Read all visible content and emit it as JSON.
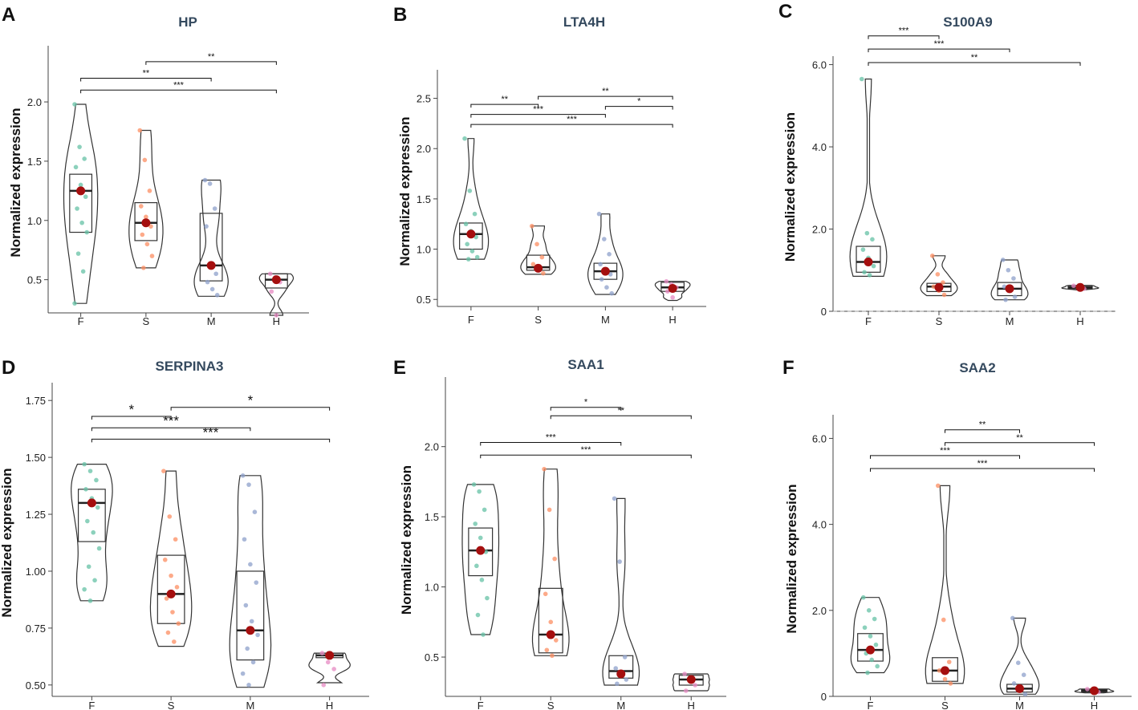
{
  "chart_data": [
    {
      "type": "violin-box",
      "panel": "A",
      "title": "HP",
      "ylabel": "Normalized expression",
      "categories": [
        "F",
        "S",
        "M",
        "H"
      ],
      "yticks": [
        0.5,
        1.0,
        1.5,
        2.0
      ],
      "ytick_labels": [
        "0.5",
        "1.0",
        "1.5",
        "2.0"
      ],
      "ylim": [
        0.22,
        2.42
      ],
      "box": [
        {
          "q1": 0.9,
          "median": 1.25,
          "q3": 1.39,
          "min": 0.3,
          "max": 1.98,
          "mean": 1.25
        },
        {
          "q1": 0.83,
          "median": 0.98,
          "q3": 1.15,
          "min": 0.6,
          "max": 1.76,
          "mean": 0.98
        },
        {
          "q1": 0.49,
          "median": 0.62,
          "q3": 1.06,
          "min": 0.36,
          "max": 1.34,
          "mean": 0.62
        },
        {
          "q1": 0.43,
          "median": 0.5,
          "q3": 0.55,
          "min": 0.2,
          "max": 0.55,
          "mean": 0.5
        }
      ],
      "points": [
        [
          1.98,
          1.62,
          1.52,
          1.45,
          1.3,
          1.2,
          1.1,
          0.98,
          0.9,
          0.72,
          0.57,
          0.3
        ],
        [
          1.76,
          1.51,
          1.25,
          1.12,
          1.03,
          0.95,
          0.88,
          0.8,
          0.7,
          0.6
        ],
        [
          1.34,
          1.31,
          1.1,
          0.95,
          0.62,
          0.55,
          0.48,
          0.42,
          0.37
        ],
        [
          0.55,
          0.52,
          0.48,
          0.4,
          0.2
        ]
      ],
      "comparisons": [
        {
          "from": "S",
          "to": "H",
          "label": "**",
          "y": 2.34
        },
        {
          "from": "F",
          "to": "M",
          "label": "**",
          "y": 2.2
        },
        {
          "from": "F",
          "to": "H",
          "label": "***",
          "y": 2.1
        }
      ]
    },
    {
      "type": "violin-box",
      "panel": "B",
      "title": "LTA4H",
      "ylabel": "Normalized expression",
      "categories": [
        "F",
        "S",
        "M",
        "H"
      ],
      "yticks": [
        0.5,
        1.0,
        1.5,
        2.0,
        2.5
      ],
      "ytick_labels": [
        "0.5",
        "1.0",
        "1.5",
        "2.0",
        "2.5"
      ],
      "ylim": [
        0.43,
        2.72
      ],
      "box": [
        {
          "q1": 1.0,
          "median": 1.15,
          "q3": 1.26,
          "min": 0.9,
          "max": 2.1,
          "mean": 1.15
        },
        {
          "q1": 0.79,
          "median": 0.82,
          "q3": 0.94,
          "min": 0.75,
          "max": 1.23,
          "mean": 0.81
        },
        {
          "q1": 0.7,
          "median": 0.78,
          "q3": 0.86,
          "min": 0.55,
          "max": 1.35,
          "mean": 0.78
        },
        {
          "q1": 0.58,
          "median": 0.62,
          "q3": 0.67,
          "min": 0.49,
          "max": 0.68,
          "mean": 0.61
        }
      ],
      "points": [
        [
          2.1,
          1.58,
          1.35,
          1.25,
          1.18,
          1.12,
          1.05,
          0.98,
          0.92,
          0.9
        ],
        [
          1.23,
          1.05,
          0.92,
          0.85,
          0.8,
          0.76
        ],
        [
          1.35,
          1.1,
          0.95,
          0.85,
          0.8,
          0.75,
          0.7,
          0.62,
          0.56
        ],
        [
          0.68,
          0.65,
          0.62,
          0.58,
          0.52
        ]
      ],
      "comparisons": [
        {
          "from": "S",
          "to": "H",
          "label": "**",
          "y": 2.52
        },
        {
          "from": "M",
          "to": "H",
          "label": "*",
          "y": 2.42
        },
        {
          "from": "F",
          "to": "S",
          "label": "**",
          "y": 2.44
        },
        {
          "from": "F",
          "to": "M",
          "label": "***",
          "y": 2.34
        },
        {
          "from": "F",
          "to": "H",
          "label": "***",
          "y": 2.24
        }
      ]
    },
    {
      "type": "violin-box",
      "panel": "C",
      "title": "S100A9",
      "ylabel": "Normalized expression",
      "categories": [
        "F",
        "S",
        "M",
        "H"
      ],
      "yticks": [
        0,
        2.0,
        4.0,
        6.0
      ],
      "ytick_labels": [
        "0",
        "2.0",
        "4.0",
        "6.0"
      ],
      "ylim": [
        0,
        6.05
      ],
      "zero_line": true,
      "box": [
        {
          "q1": 0.95,
          "median": 1.2,
          "q3": 1.58,
          "min": 0.85,
          "max": 5.65,
          "mean": 1.2
        },
        {
          "q1": 0.48,
          "median": 0.6,
          "q3": 0.68,
          "min": 0.38,
          "max": 1.35,
          "mean": 0.58
        },
        {
          "q1": 0.38,
          "median": 0.55,
          "q3": 0.7,
          "min": 0.28,
          "max": 1.25,
          "mean": 0.55
        },
        {
          "q1": 0.55,
          "median": 0.58,
          "q3": 0.62,
          "min": 0.52,
          "max": 0.63,
          "mean": 0.58
        }
      ],
      "points": [
        [
          5.65,
          1.9,
          1.75,
          1.5,
          1.3,
          1.1,
          0.95,
          0.88
        ],
        [
          1.35,
          0.9,
          0.7,
          0.6,
          0.5,
          0.4
        ],
        [
          1.25,
          1.0,
          0.8,
          0.6,
          0.5,
          0.35,
          0.28
        ],
        [
          0.62,
          0.58,
          0.55
        ]
      ],
      "comparisons": [
        {
          "from": "F",
          "to": "S",
          "label": "***",
          "y": 6.7
        },
        {
          "from": "F",
          "to": "M",
          "label": "***",
          "y": 6.38
        },
        {
          "from": "F",
          "to": "H",
          "label": "**",
          "y": 6.05
        }
      ]
    },
    {
      "type": "violin-box",
      "panel": "D",
      "title": "SERPINA3",
      "ylabel": "Normalized expression",
      "categories": [
        "F",
        "S",
        "M",
        "H"
      ],
      "yticks": [
        0.5,
        0.75,
        1.0,
        1.25,
        1.5,
        1.75
      ],
      "ytick_labels": [
        "0.50",
        "0.75",
        "1.00",
        "1.25",
        "1.50",
        "1.75"
      ],
      "ylim": [
        0.45,
        1.8
      ],
      "box": [
        {
          "q1": 1.13,
          "median": 1.3,
          "q3": 1.36,
          "min": 0.87,
          "max": 1.47,
          "mean": 1.3
        },
        {
          "q1": 0.77,
          "median": 0.9,
          "q3": 1.07,
          "min": 0.67,
          "max": 1.44,
          "mean": 0.9
        },
        {
          "q1": 0.61,
          "median": 0.74,
          "q3": 1.0,
          "min": 0.49,
          "max": 1.42,
          "mean": 0.74
        },
        {
          "q1": 0.62,
          "median": 0.63,
          "q3": 0.64,
          "min": 0.51,
          "max": 0.64,
          "mean": 0.63
        }
      ],
      "points": [
        [
          1.47,
          1.44,
          1.4,
          1.36,
          1.32,
          1.28,
          1.22,
          1.17,
          1.1,
          1.02,
          0.96,
          0.92,
          0.87
        ],
        [
          1.44,
          1.24,
          1.14,
          1.05,
          0.98,
          0.93,
          0.88,
          0.82,
          0.77,
          0.73,
          0.69
        ],
        [
          1.42,
          1.38,
          1.26,
          1.14,
          1.03,
          0.95,
          0.85,
          0.78,
          0.72,
          0.66,
          0.6,
          0.55,
          0.5
        ],
        [
          0.64,
          0.6,
          0.57,
          0.5
        ]
      ],
      "comparisons": [
        {
          "from": "S",
          "to": "H",
          "label": "*",
          "y": 1.72
        },
        {
          "from": "F",
          "to": "S",
          "label": "*",
          "y": 1.68
        },
        {
          "from": "F",
          "to": "M",
          "label": "***",
          "y": 1.63
        },
        {
          "from": "F",
          "to": "H",
          "label": "***",
          "y": 1.58
        }
      ]
    },
    {
      "type": "violin-box",
      "panel": "E",
      "title": "SAA1",
      "ylabel": "Normalized expression",
      "categories": [
        "F",
        "S",
        "M",
        "H"
      ],
      "yticks": [
        0.5,
        1.0,
        1.5,
        2.0
      ],
      "ytick_labels": [
        "0.5",
        "1.0",
        "1.5",
        "2.0"
      ],
      "ylim": [
        0.22,
        2.45
      ],
      "box": [
        {
          "q1": 1.08,
          "median": 1.26,
          "q3": 1.42,
          "min": 0.66,
          "max": 1.73,
          "mean": 1.26
        },
        {
          "q1": 0.53,
          "median": 0.66,
          "q3": 0.99,
          "min": 0.51,
          "max": 1.84,
          "mean": 0.66
        },
        {
          "q1": 0.35,
          "median": 0.4,
          "q3": 0.51,
          "min": 0.3,
          "max": 1.63,
          "mean": 0.38
        },
        {
          "q1": 0.3,
          "median": 0.34,
          "q3": 0.37,
          "min": 0.26,
          "max": 0.38,
          "mean": 0.34
        }
      ],
      "points": [
        [
          1.73,
          1.68,
          1.55,
          1.45,
          1.35,
          1.25,
          1.15,
          1.05,
          0.92,
          0.8,
          0.66
        ],
        [
          1.84,
          1.55,
          1.2,
          0.95,
          0.75,
          0.62,
          0.55,
          0.51
        ],
        [
          1.63,
          1.18,
          0.5,
          0.42,
          0.38,
          0.34,
          0.31
        ],
        [
          0.38,
          0.34,
          0.3,
          0.26
        ]
      ],
      "comparisons": [
        {
          "from": "S",
          "to": "M",
          "label": "*",
          "y": 2.28
        },
        {
          "from": "S",
          "to": "H",
          "label": "**",
          "y": 2.22
        },
        {
          "from": "F",
          "to": "M",
          "label": "***",
          "y": 2.03
        },
        {
          "from": "F",
          "to": "H",
          "label": "***",
          "y": 1.94
        }
      ]
    },
    {
      "type": "violin-box",
      "panel": "F",
      "title": "SAA2",
      "ylabel": "Normalized expression",
      "categories": [
        "F",
        "S",
        "M",
        "H"
      ],
      "yticks": [
        0,
        2.0,
        4.0,
        6.0
      ],
      "ytick_labels": [
        "0",
        "2.0",
        "4.0",
        "6.0"
      ],
      "ylim": [
        0,
        6.4
      ],
      "box": [
        {
          "q1": 0.82,
          "median": 1.08,
          "q3": 1.46,
          "min": 0.55,
          "max": 2.3,
          "mean": 1.08
        },
        {
          "q1": 0.35,
          "median": 0.6,
          "q3": 0.9,
          "min": 0.3,
          "max": 4.9,
          "mean": 0.6
        },
        {
          "q1": 0.1,
          "median": 0.18,
          "q3": 0.28,
          "min": 0.05,
          "max": 1.82,
          "mean": 0.18
        },
        {
          "q1": 0.1,
          "median": 0.13,
          "q3": 0.15,
          "min": 0.08,
          "max": 0.17,
          "mean": 0.13
        }
      ],
      "points": [
        [
          2.3,
          2.0,
          1.8,
          1.6,
          1.4,
          1.2,
          1.0,
          0.85,
          0.7,
          0.55
        ],
        [
          4.9,
          1.78,
          0.8,
          0.6,
          0.4,
          0.3
        ],
        [
          1.82,
          0.78,
          0.5,
          0.3,
          0.15,
          0.05
        ],
        [
          0.17,
          0.13,
          0.1
        ]
      ],
      "comparisons": [
        {
          "from": "S",
          "to": "M",
          "label": "**",
          "y": 6.2
        },
        {
          "from": "S",
          "to": "H",
          "label": "**",
          "y": 5.9
        },
        {
          "from": "F",
          "to": "M",
          "label": "***",
          "y": 5.6
        },
        {
          "from": "F",
          "to": "H",
          "label": "***",
          "y": 5.3
        }
      ]
    }
  ],
  "colors": {
    "F": "#66c2a5",
    "S": "#fc8d62",
    "M": "#8da0cb",
    "H": "#e78ac3",
    "mean": "#a50f0f",
    "axis": "#444444",
    "line": "#333333"
  }
}
